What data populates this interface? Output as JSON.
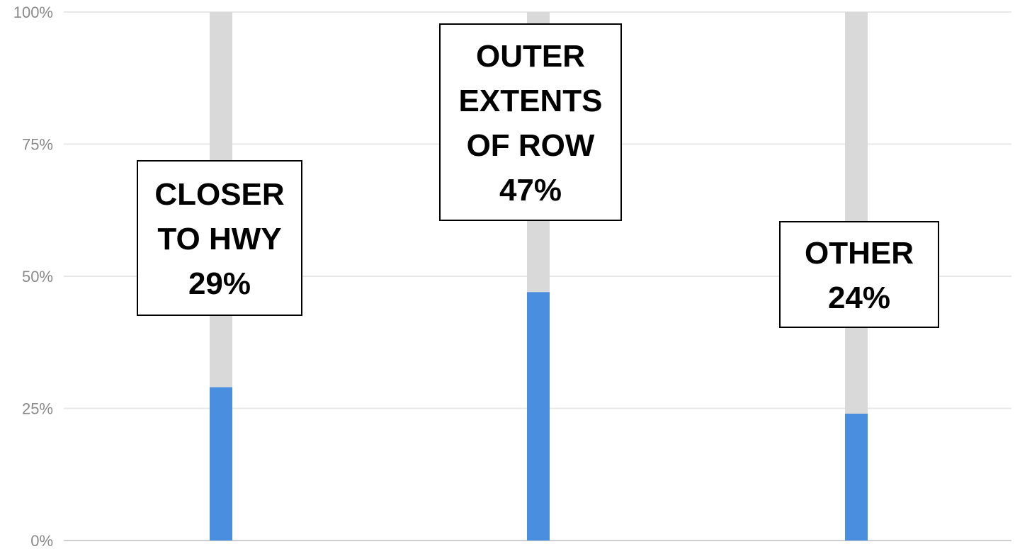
{
  "chart_data": {
    "type": "bar",
    "categories": [
      "CLOSER TO HWY",
      "OUTER EXTENTS OF ROW",
      "OTHER"
    ],
    "values": [
      29,
      47,
      24
    ],
    "label_lines": [
      [
        "CLOSER",
        "TO HWY",
        "29%"
      ],
      [
        "OUTER",
        "EXTENTS",
        "OF ROW",
        "47%"
      ],
      [
        "OTHER",
        "24%"
      ]
    ],
    "ylim": [
      0,
      100
    ],
    "yticks": [
      {
        "value": 0,
        "label": "0%"
      },
      {
        "value": 25,
        "label": "25%"
      },
      {
        "value": 50,
        "label": "50%"
      },
      {
        "value": 75,
        "label": "75%"
      },
      {
        "value": 100,
        "label": "100%"
      }
    ],
    "grid": true,
    "bar_color": "#4a8ee0",
    "track_color": "#d9d9d9",
    "title": "",
    "xlabel": "",
    "ylabel": ""
  }
}
